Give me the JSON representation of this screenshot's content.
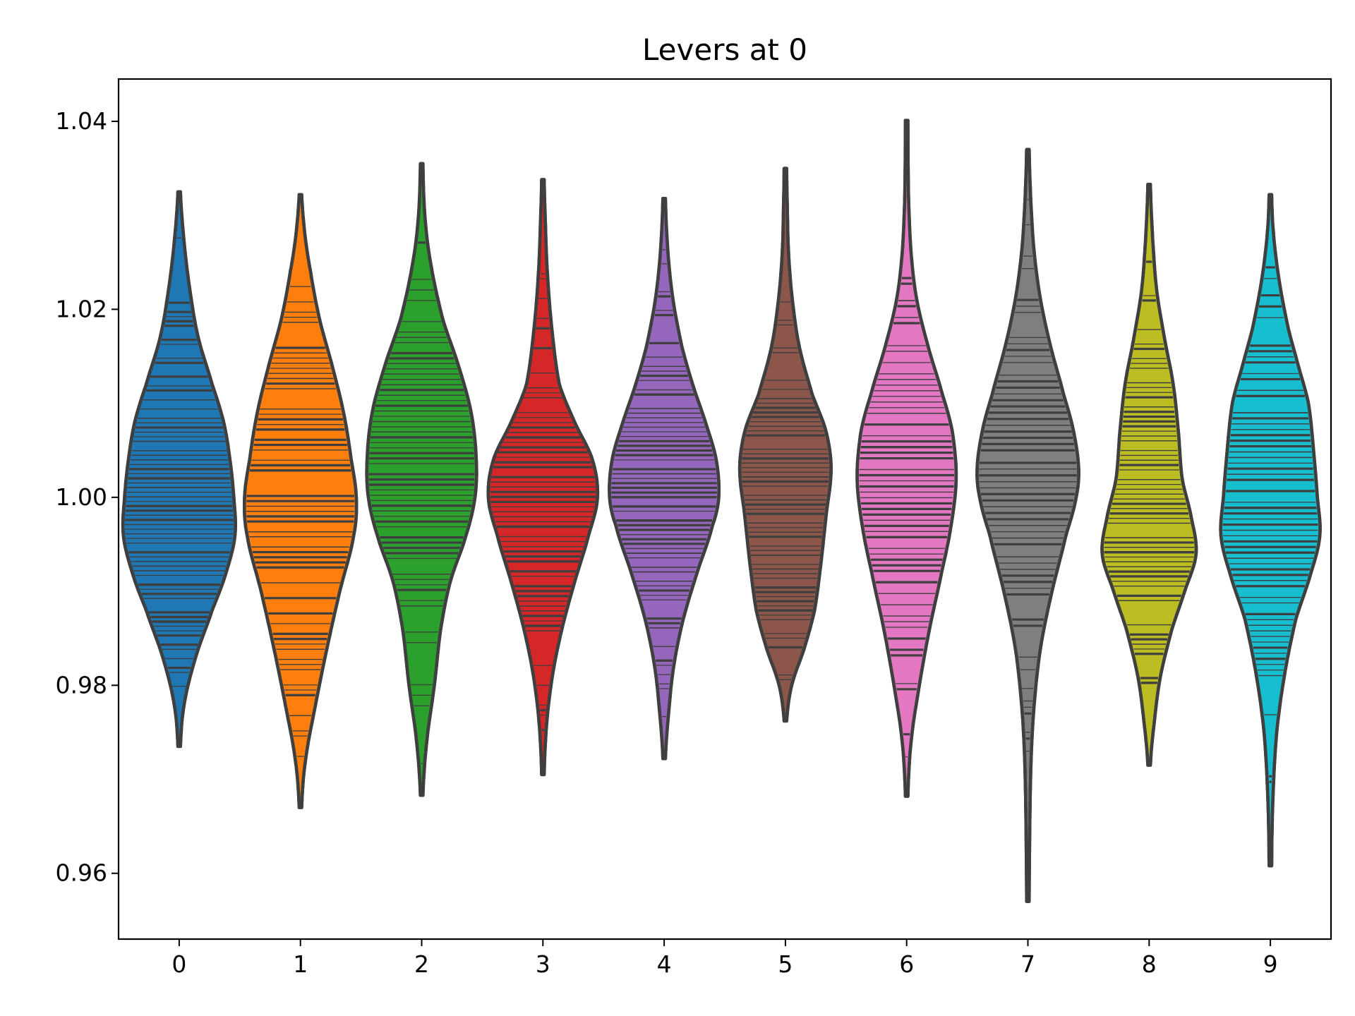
{
  "chart_data": {
    "type": "violin",
    "title": "Levers at 0",
    "xlabel": "",
    "ylabel": "",
    "categories": [
      "0",
      "1",
      "2",
      "3",
      "4",
      "5",
      "6",
      "7",
      "8",
      "9"
    ],
    "ylim": [
      0.953,
      1.0445
    ],
    "yticks": [
      "0.96",
      "0.98",
      "1.00",
      "1.02",
      "1.04"
    ],
    "inner": "stick",
    "grid": false,
    "legend": "none",
    "series": [
      {
        "category": "0",
        "color": "#1f77b4",
        "min": 0.9735,
        "max": 1.0325,
        "density": [
          [
            0.9735,
            0.02
          ],
          [
            0.978,
            0.08
          ],
          [
            0.983,
            0.26
          ],
          [
            0.988,
            0.52
          ],
          [
            0.992,
            0.74
          ],
          [
            0.996,
            0.88
          ],
          [
            1.0,
            0.86
          ],
          [
            1.004,
            0.8
          ],
          [
            1.008,
            0.7
          ],
          [
            1.012,
            0.52
          ],
          [
            1.017,
            0.3
          ],
          [
            1.022,
            0.17
          ],
          [
            1.027,
            0.08
          ],
          [
            1.0325,
            0.02
          ]
        ]
      },
      {
        "category": "1",
        "color": "#ff7f0e",
        "min": 0.967,
        "max": 1.0322,
        "density": [
          [
            0.967,
            0.02
          ],
          [
            0.972,
            0.08
          ],
          [
            0.978,
            0.24
          ],
          [
            0.984,
            0.42
          ],
          [
            0.99,
            0.62
          ],
          [
            0.996,
            0.84
          ],
          [
            1.0,
            0.88
          ],
          [
            1.004,
            0.8
          ],
          [
            1.009,
            0.68
          ],
          [
            1.014,
            0.5
          ],
          [
            1.019,
            0.3
          ],
          [
            1.024,
            0.16
          ],
          [
            1.028,
            0.07
          ],
          [
            1.0322,
            0.02
          ]
        ]
      },
      {
        "category": "2",
        "color": "#2ca02c",
        "min": 0.9683,
        "max": 1.0355,
        "density": [
          [
            0.9683,
            0.02
          ],
          [
            0.974,
            0.08
          ],
          [
            0.98,
            0.2
          ],
          [
            0.986,
            0.3
          ],
          [
            0.991,
            0.45
          ],
          [
            0.996,
            0.7
          ],
          [
            1.0,
            0.84
          ],
          [
            1.004,
            0.86
          ],
          [
            1.009,
            0.78
          ],
          [
            1.014,
            0.58
          ],
          [
            1.019,
            0.33
          ],
          [
            1.025,
            0.14
          ],
          [
            1.03,
            0.05
          ],
          [
            1.0355,
            0.02
          ]
        ]
      },
      {
        "category": "3",
        "color": "#d62728",
        "min": 0.9705,
        "max": 1.0338,
        "density": [
          [
            0.9705,
            0.02
          ],
          [
            0.976,
            0.06
          ],
          [
            0.981,
            0.15
          ],
          [
            0.986,
            0.3
          ],
          [
            0.991,
            0.5
          ],
          [
            0.996,
            0.72
          ],
          [
            1.0,
            0.86
          ],
          [
            1.004,
            0.78
          ],
          [
            1.008,
            0.5
          ],
          [
            1.012,
            0.26
          ],
          [
            1.018,
            0.14
          ],
          [
            1.024,
            0.07
          ],
          [
            1.029,
            0.04
          ],
          [
            1.0338,
            0.02
          ]
        ]
      },
      {
        "category": "4",
        "color": "#9467bd",
        "min": 0.9722,
        "max": 1.0318,
        "density": [
          [
            0.9722,
            0.02
          ],
          [
            0.977,
            0.07
          ],
          [
            0.982,
            0.15
          ],
          [
            0.987,
            0.3
          ],
          [
            0.992,
            0.52
          ],
          [
            0.997,
            0.76
          ],
          [
            1.0,
            0.86
          ],
          [
            1.004,
            0.82
          ],
          [
            1.008,
            0.65
          ],
          [
            1.012,
            0.45
          ],
          [
            1.016,
            0.28
          ],
          [
            1.021,
            0.14
          ],
          [
            1.026,
            0.06
          ],
          [
            1.0318,
            0.02
          ]
        ]
      },
      {
        "category": "5",
        "color": "#8c564b",
        "min": 0.9762,
        "max": 1.035,
        "density": [
          [
            0.9762,
            0.02
          ],
          [
            0.98,
            0.1
          ],
          [
            0.984,
            0.3
          ],
          [
            0.988,
            0.46
          ],
          [
            0.993,
            0.56
          ],
          [
            0.998,
            0.64
          ],
          [
            1.003,
            0.72
          ],
          [
            1.007,
            0.64
          ],
          [
            1.011,
            0.42
          ],
          [
            1.016,
            0.22
          ],
          [
            1.021,
            0.11
          ],
          [
            1.026,
            0.05
          ],
          [
            1.031,
            0.03
          ],
          [
            1.035,
            0.02
          ]
        ]
      },
      {
        "category": "6",
        "color": "#e377c2",
        "min": 0.9682,
        "max": 1.0401,
        "density": [
          [
            0.9682,
            0.02
          ],
          [
            0.974,
            0.07
          ],
          [
            0.98,
            0.2
          ],
          [
            0.986,
            0.36
          ],
          [
            0.992,
            0.55
          ],
          [
            0.997,
            0.7
          ],
          [
            1.002,
            0.78
          ],
          [
            1.007,
            0.72
          ],
          [
            1.011,
            0.56
          ],
          [
            1.016,
            0.34
          ],
          [
            1.021,
            0.16
          ],
          [
            1.026,
            0.07
          ],
          [
            1.032,
            0.03
          ],
          [
            1.0401,
            0.02
          ]
        ]
      },
      {
        "category": "7",
        "color": "#7f7f7f",
        "min": 0.957,
        "max": 1.037,
        "density": [
          [
            0.957,
            0.02
          ],
          [
            0.965,
            0.03
          ],
          [
            0.972,
            0.05
          ],
          [
            0.978,
            0.1
          ],
          [
            0.984,
            0.2
          ],
          [
            0.99,
            0.38
          ],
          [
            0.996,
            0.6
          ],
          [
            1.0,
            0.76
          ],
          [
            1.003,
            0.8
          ],
          [
            1.007,
            0.72
          ],
          [
            1.011,
            0.56
          ],
          [
            1.016,
            0.36
          ],
          [
            1.021,
            0.2
          ],
          [
            1.026,
            0.1
          ],
          [
            1.031,
            0.05
          ],
          [
            1.037,
            0.02
          ]
        ]
      },
      {
        "category": "8",
        "color": "#bcbd22",
        "min": 0.9715,
        "max": 1.0333,
        "density": [
          [
            0.9715,
            0.02
          ],
          [
            0.976,
            0.08
          ],
          [
            0.981,
            0.18
          ],
          [
            0.986,
            0.36
          ],
          [
            0.99,
            0.56
          ],
          [
            0.994,
            0.74
          ],
          [
            0.998,
            0.66
          ],
          [
            1.002,
            0.52
          ],
          [
            1.007,
            0.46
          ],
          [
            1.012,
            0.38
          ],
          [
            1.017,
            0.24
          ],
          [
            1.022,
            0.12
          ],
          [
            1.027,
            0.06
          ],
          [
            1.0333,
            0.02
          ]
        ]
      },
      {
        "category": "9",
        "color": "#17becf",
        "min": 0.9608,
        "max": 1.0322,
        "density": [
          [
            0.9608,
            0.02
          ],
          [
            0.968,
            0.04
          ],
          [
            0.975,
            0.1
          ],
          [
            0.981,
            0.22
          ],
          [
            0.987,
            0.4
          ],
          [
            0.992,
            0.64
          ],
          [
            0.996,
            0.78
          ],
          [
            1.0,
            0.74
          ],
          [
            1.005,
            0.68
          ],
          [
            1.01,
            0.6
          ],
          [
            1.014,
            0.44
          ],
          [
            1.018,
            0.28
          ],
          [
            1.023,
            0.14
          ],
          [
            1.028,
            0.05
          ],
          [
            1.0322,
            0.02
          ]
        ]
      }
    ]
  }
}
